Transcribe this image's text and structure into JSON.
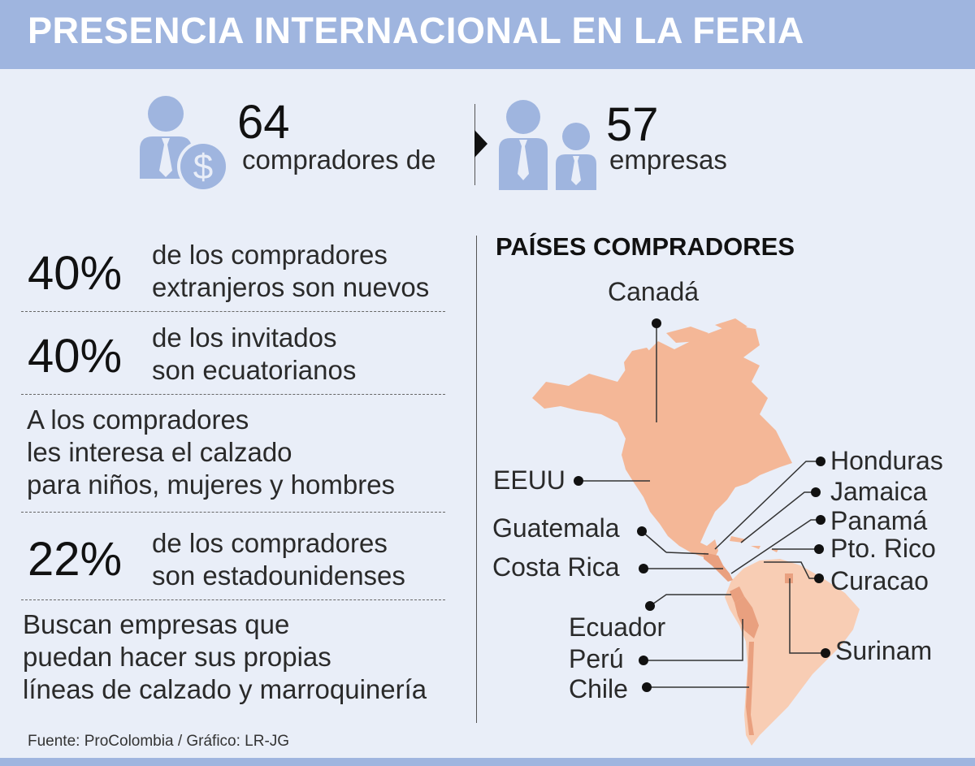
{
  "title": "PRESENCIA INTERNACIONAL EN LA FERIA",
  "top_stats": {
    "buyers_number": "64",
    "buyers_label": "compradores de",
    "companies_number": "57",
    "companies_label": "empresas"
  },
  "facts": [
    {
      "percent": "40%",
      "line1": "de los compradores",
      "line2": "extranjeros son nuevos"
    },
    {
      "percent": "40%",
      "line1": "de los invitados",
      "line2": "son ecuatorianos"
    },
    {
      "line1": "A los compradores",
      "line2": "les interesa el calzado",
      "line3": "para niños, mujeres y hombres"
    },
    {
      "percent": "22%",
      "line1": "de los compradores",
      "line2": "son estadounidenses"
    },
    {
      "line1": "Buscan empresas que",
      "line2": "puedan hacer sus propias",
      "line3": "líneas de calzado y marroquinería"
    }
  ],
  "map": {
    "title": "PAÍSES COMPRADORES",
    "countries": {
      "canada": "Canadá",
      "eeuu": "EEUU",
      "guatemala": "Guatemala",
      "costa_rica": "Costa Rica",
      "ecuador": "Ecuador",
      "peru": "Perú",
      "chile": "Chile",
      "honduras": "Honduras",
      "jamaica": "Jamaica",
      "panama": "Panamá",
      "puerto_rico": "Pto. Rico",
      "curacao": "Curacao",
      "surinam": "Surinam"
    },
    "colors": {
      "north_america": "#f4b797",
      "south_america": "#f8cdb4",
      "highlight": "#e9a07f"
    }
  },
  "source": "Fuente: ProColombia / Gráfico: LR-JG"
}
